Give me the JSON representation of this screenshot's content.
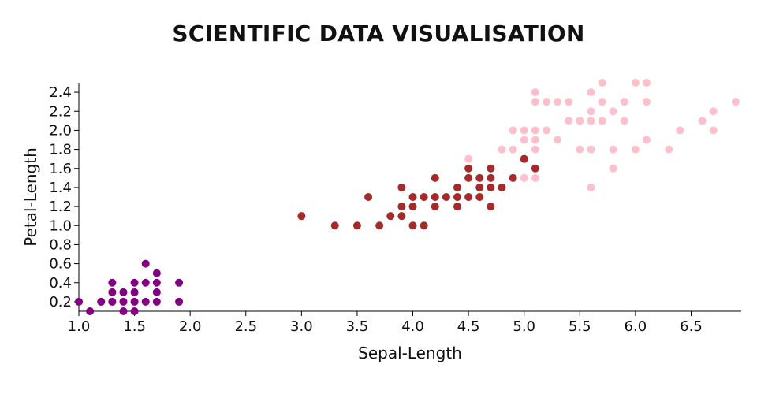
{
  "chart_data": {
    "type": "scatter",
    "title": "SCIENTIFIC DATA VISUALISATION",
    "xlabel": "Sepal-Length",
    "ylabel": "Petal-Length",
    "xlim": [
      1.0,
      6.95
    ],
    "ylim": [
      0.1,
      2.5
    ],
    "x_ticks": [
      "1.0",
      "1.5",
      "2.0",
      "2.5",
      "3.0",
      "3.5",
      "4.0",
      "4.5",
      "5.0",
      "5.5",
      "6.0",
      "6.5"
    ],
    "y_ticks": [
      "0.2",
      "0.4",
      "0.6",
      "0.8",
      "1.0",
      "1.2",
      "1.4",
      "1.6",
      "1.8",
      "2.0",
      "2.2",
      "2.4"
    ],
    "grid": false,
    "legend": "none",
    "series": [
      {
        "color": "#800080",
        "points": [
          [
            1.0,
            0.2
          ],
          [
            1.1,
            0.1
          ],
          [
            1.2,
            0.2
          ],
          [
            1.3,
            0.2
          ],
          [
            1.3,
            0.3
          ],
          [
            1.3,
            0.4
          ],
          [
            1.4,
            0.1
          ],
          [
            1.4,
            0.2
          ],
          [
            1.4,
            0.3
          ],
          [
            1.5,
            0.1
          ],
          [
            1.5,
            0.2
          ],
          [
            1.5,
            0.3
          ],
          [
            1.5,
            0.4
          ],
          [
            1.6,
            0.2
          ],
          [
            1.6,
            0.4
          ],
          [
            1.6,
            0.6
          ],
          [
            1.7,
            0.2
          ],
          [
            1.7,
            0.3
          ],
          [
            1.7,
            0.4
          ],
          [
            1.7,
            0.5
          ],
          [
            1.9,
            0.2
          ],
          [
            1.9,
            0.4
          ]
        ]
      },
      {
        "color": "#a52a2a",
        "points": [
          [
            3.0,
            1.1
          ],
          [
            3.3,
            1.0
          ],
          [
            3.5,
            1.0
          ],
          [
            3.6,
            1.3
          ],
          [
            3.7,
            1.0
          ],
          [
            3.8,
            1.1
          ],
          [
            3.9,
            1.1
          ],
          [
            3.9,
            1.2
          ],
          [
            3.9,
            1.4
          ],
          [
            4.0,
            1.0
          ],
          [
            4.0,
            1.2
          ],
          [
            4.0,
            1.3
          ],
          [
            4.1,
            1.0
          ],
          [
            4.1,
            1.3
          ],
          [
            4.2,
            1.2
          ],
          [
            4.2,
            1.3
          ],
          [
            4.2,
            1.5
          ],
          [
            4.3,
            1.3
          ],
          [
            4.4,
            1.2
          ],
          [
            4.4,
            1.3
          ],
          [
            4.4,
            1.4
          ],
          [
            4.5,
            1.3
          ],
          [
            4.5,
            1.5
          ],
          [
            4.5,
            1.6
          ],
          [
            4.6,
            1.3
          ],
          [
            4.6,
            1.4
          ],
          [
            4.6,
            1.5
          ],
          [
            4.7,
            1.2
          ],
          [
            4.7,
            1.4
          ],
          [
            4.7,
            1.5
          ],
          [
            4.7,
            1.6
          ],
          [
            4.8,
            1.4
          ],
          [
            4.9,
            1.5
          ],
          [
            5.0,
            1.7
          ],
          [
            5.1,
            1.6
          ]
        ]
      },
      {
        "color": "#ffc0cb",
        "points": [
          [
            4.5,
            1.7
          ],
          [
            4.8,
            1.8
          ],
          [
            4.9,
            1.8
          ],
          [
            4.9,
            2.0
          ],
          [
            5.0,
            1.5
          ],
          [
            5.0,
            1.9
          ],
          [
            5.0,
            2.0
          ],
          [
            5.1,
            1.5
          ],
          [
            5.1,
            1.8
          ],
          [
            5.1,
            1.9
          ],
          [
            5.1,
            2.0
          ],
          [
            5.1,
            2.3
          ],
          [
            5.1,
            2.4
          ],
          [
            5.2,
            2.0
          ],
          [
            5.2,
            2.3
          ],
          [
            5.3,
            1.9
          ],
          [
            5.3,
            2.3
          ],
          [
            5.4,
            2.1
          ],
          [
            5.4,
            2.3
          ],
          [
            5.5,
            1.8
          ],
          [
            5.5,
            2.1
          ],
          [
            5.6,
            1.4
          ],
          [
            5.6,
            1.8
          ],
          [
            5.6,
            2.1
          ],
          [
            5.6,
            2.2
          ],
          [
            5.6,
            2.4
          ],
          [
            5.7,
            2.1
          ],
          [
            5.7,
            2.3
          ],
          [
            5.7,
            2.5
          ],
          [
            5.8,
            1.6
          ],
          [
            5.8,
            1.8
          ],
          [
            5.8,
            2.2
          ],
          [
            5.9,
            2.1
          ],
          [
            5.9,
            2.3
          ],
          [
            6.0,
            1.8
          ],
          [
            6.0,
            2.5
          ],
          [
            6.1,
            1.9
          ],
          [
            6.1,
            2.3
          ],
          [
            6.1,
            2.5
          ],
          [
            6.3,
            1.8
          ],
          [
            6.4,
            2.0
          ],
          [
            6.6,
            2.1
          ],
          [
            6.7,
            2.0
          ],
          [
            6.7,
            2.2
          ],
          [
            6.9,
            2.3
          ]
        ]
      }
    ]
  }
}
